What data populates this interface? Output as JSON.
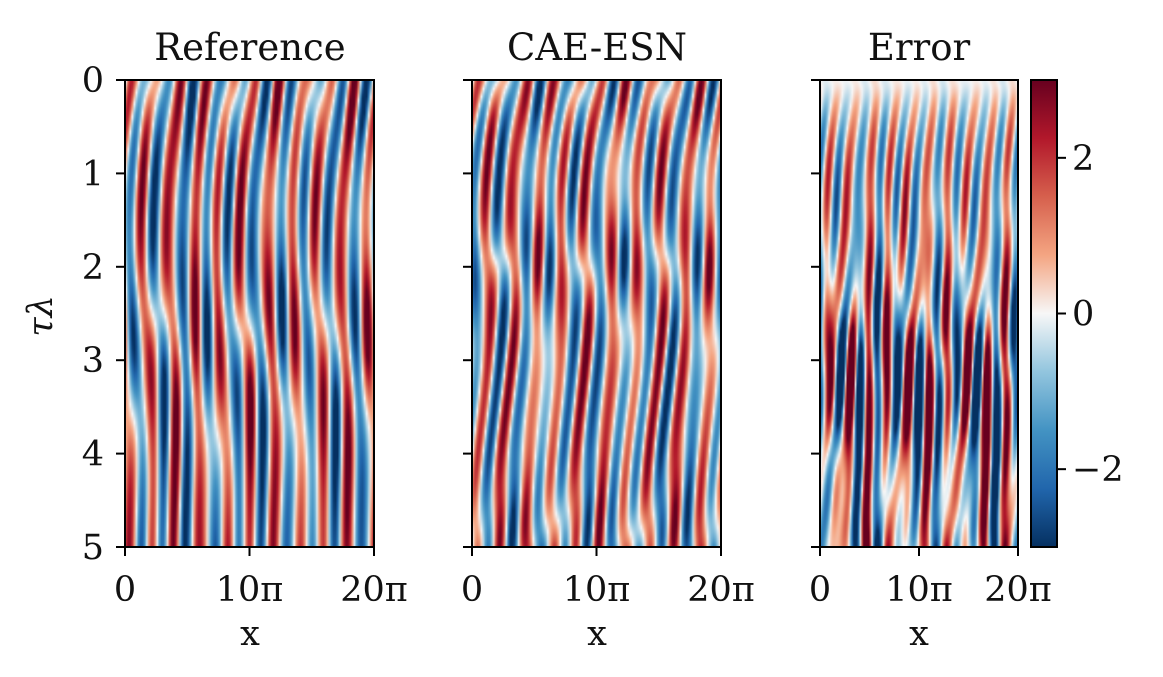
{
  "chart_data": [
    {
      "type": "heatmap",
      "title": "Reference",
      "xlabel": "x",
      "ylabel": "τλ",
      "xlim": [
        0,
        62.83
      ],
      "ylim": [
        5,
        0
      ],
      "x_ticks": [
        "0",
        "10π",
        "20π"
      ],
      "y_ticks": [
        "0",
        "1",
        "2",
        "3",
        "4",
        "5"
      ],
      "colormap": "RdBu_r",
      "value_range": [
        -3,
        3
      ]
    },
    {
      "type": "heatmap",
      "title": "CAE-ESN",
      "xlabel": "x",
      "xlim": [
        0,
        62.83
      ],
      "ylim": [
        5,
        0
      ],
      "x_ticks": [
        "0",
        "10π",
        "20π"
      ],
      "colormap": "RdBu_r",
      "value_range": [
        -3,
        3
      ]
    },
    {
      "type": "heatmap",
      "title": "Error",
      "xlabel": "x",
      "xlim": [
        0,
        62.83
      ],
      "ylim": [
        5,
        0
      ],
      "x_ticks": [
        "0",
        "10π",
        "20π"
      ],
      "colormap": "RdBu_r",
      "value_range": [
        -3,
        3
      ],
      "colorbar": {
        "ticks": [
          2,
          0,
          -2
        ],
        "tick_labels": [
          "2",
          "0",
          "−2"
        ],
        "range": [
          -3,
          3
        ]
      }
    }
  ]
}
